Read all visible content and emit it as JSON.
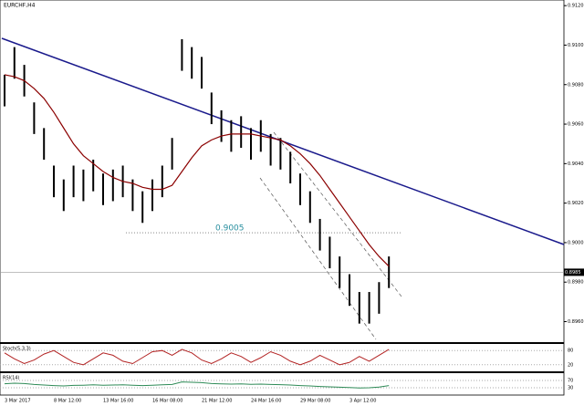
{
  "chart_data": {
    "type": "bar",
    "title": "EURCHF,H4",
    "categories": [
      "3 Mar 2017",
      null,
      null,
      null,
      null,
      "8 Mar 12:00",
      null,
      null,
      null,
      null,
      "13 Mar 16:00",
      null,
      null,
      null,
      null,
      "16 Mar 08:00",
      null,
      null,
      null,
      null,
      "21 Mar 12:00",
      null,
      null,
      null,
      null,
      "24 Mar 16:00",
      null,
      null,
      null,
      null,
      "29 Mar 08:00",
      null,
      null,
      null,
      null,
      "3 Apr 12:00",
      null,
      null,
      null,
      null
    ],
    "high": [
      0.9085,
      0.9099,
      0.909,
      0.9071,
      0.9058,
      0.9039,
      0.9032,
      0.9039,
      0.9037,
      0.9042,
      0.9035,
      0.9037,
      0.9039,
      0.9032,
      0.9026,
      0.9032,
      0.9039,
      0.9053,
      0.9103,
      0.9099,
      0.9094,
      0.9076,
      0.9067,
      0.9062,
      0.9064,
      0.9058,
      0.9062,
      0.9055,
      0.9053,
      0.9046,
      0.9035,
      0.9026,
      0.9012,
      0.9003,
      0.8993,
      0.8984,
      0.8975,
      0.8975,
      0.898,
      0.8993
    ],
    "low": [
      0.9069,
      0.9083,
      0.9074,
      0.9055,
      0.9042,
      0.9023,
      0.9016,
      0.9023,
      0.9021,
      0.9026,
      0.9019,
      0.9021,
      0.9023,
      0.9016,
      0.901,
      0.9016,
      0.9023,
      0.9037,
      0.9087,
      0.9083,
      0.9078,
      0.906,
      0.9051,
      0.9046,
      0.9048,
      0.9042,
      0.9046,
      0.9039,
      0.9037,
      0.903,
      0.9019,
      0.901,
      0.8996,
      0.8987,
      0.8977,
      0.8968,
      0.8959,
      0.8959,
      0.8964,
      0.8977
    ],
    "color": "#000000",
    "series": [
      {
        "name": "MA",
        "color": "#8b0000",
        "values": [
          0.9085,
          0.9084,
          0.9082,
          0.9078,
          0.9073,
          0.9066,
          0.9058,
          0.905,
          0.9044,
          0.904,
          0.9036,
          0.9033,
          0.9031,
          0.903,
          0.9028,
          0.9027,
          0.9027,
          0.9029,
          0.9036,
          0.9043,
          0.9049,
          0.9052,
          0.9054,
          0.9055,
          0.9055,
          0.9055,
          0.9054,
          0.9053,
          0.9052,
          0.9049,
          0.9045,
          0.904,
          0.9034,
          0.9027,
          0.902,
          0.9013,
          0.9006,
          0.8999,
          0.8993,
          0.8988
        ]
      }
    ],
    "ylim": [
      0.8951,
      0.9121
    ],
    "yticks": [
      {
        "value": 0.896,
        "label": "0.8960"
      },
      {
        "value": 0.898,
        "label": "0.8980"
      },
      {
        "value": 0.9,
        "label": "0.9000"
      },
      {
        "value": 0.902,
        "label": "0.9020"
      },
      {
        "value": 0.904,
        "label": "0.9040"
      },
      {
        "value": 0.906,
        "label": "0.9060"
      },
      {
        "value": 0.908,
        "label": "0.9080"
      },
      {
        "value": 0.91,
        "label": "0.9100"
      },
      {
        "value": 0.912,
        "label": "0.9120"
      }
    ],
    "level": 0.9005,
    "current_price": 0.8985,
    "stochastic": {
      "label": "Stoch(5,3,3)",
      "color": "#b22222",
      "ylim": [
        0,
        100
      ],
      "yticks": [
        20,
        80
      ],
      "values": [
        70,
        45,
        25,
        40,
        65,
        80,
        55,
        30,
        20,
        45,
        70,
        60,
        35,
        25,
        50,
        75,
        80,
        60,
        85,
        70,
        40,
        25,
        45,
        70,
        55,
        30,
        50,
        75,
        60,
        35,
        20,
        35,
        60,
        40,
        20,
        30,
        55,
        35,
        60,
        85
      ]
    },
    "rsi": {
      "label": "RSI(14)",
      "color": "#2e8b57",
      "ylim": [
        0,
        100
      ],
      "yticks": [
        30,
        70
      ],
      "values": [
        52,
        55,
        53,
        48,
        45,
        42,
        40,
        43,
        44,
        46,
        44,
        45,
        46,
        44,
        42,
        44,
        46,
        48,
        62,
        60,
        58,
        53,
        51,
        50,
        51,
        49,
        50,
        48,
        47,
        45,
        42,
        40,
        37,
        35,
        33,
        31,
        29,
        30,
        34,
        42
      ]
    }
  }
}
